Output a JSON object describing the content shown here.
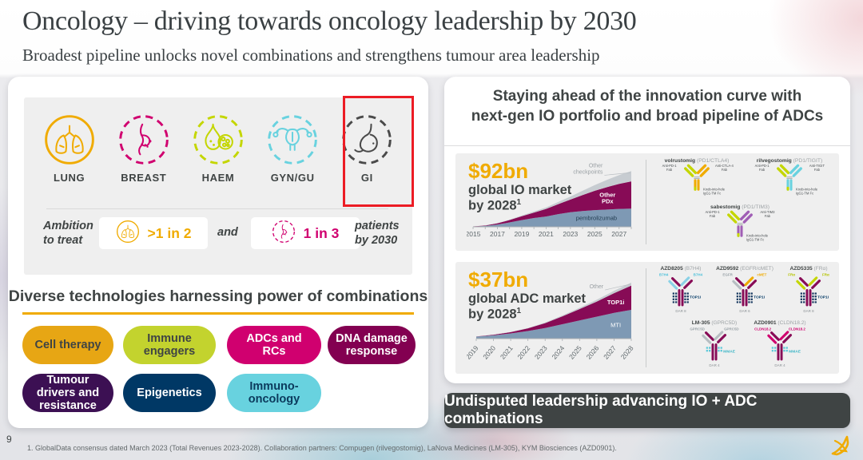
{
  "slide": {
    "title": "Oncology – driving towards oncology leadership by 2030",
    "subtitle": "Broadest pipeline unlocks novel combinations and strengthens tumour area leadership",
    "page_number": "9",
    "footnote": "1. GlobalData consensus dated March 2023 (Total Revenues 2023-2028). Collaboration partners: Compugen (rilvegostomig), LaNova Medicines (LM-305), KYM Biosciences (AZD0901)."
  },
  "left_panel": {
    "tumour_areas": [
      {
        "label": "LUNG",
        "color": "#F0AB00",
        "ring": "solid",
        "icon": "lungs"
      },
      {
        "label": "BREAST",
        "color": "#D0006F",
        "ring": "dashed",
        "icon": "breast"
      },
      {
        "label": "HAEM",
        "color": "#C4D600",
        "ring": "dashed",
        "icon": "blood-drop"
      },
      {
        "label": "GYN/GU",
        "color": "#68D2DF",
        "ring": "dashed",
        "icon": "uterus"
      },
      {
        "label": "GI",
        "color": "#4A4A4A",
        "ring": "dashed",
        "icon": "stomach",
        "highlighted": true
      }
    ],
    "highlight_color": "#EC1C24",
    "ambition": {
      "prefix": "Ambition\nto treat",
      "stat1": {
        "value": ">1 in 2",
        "color": "#F0AB00",
        "icon": "lungs",
        "ring": "solid"
      },
      "conjunction": "and",
      "stat2": {
        "value": "1 in 3",
        "color": "#D0006F",
        "icon": "breast",
        "ring": "dashed"
      },
      "suffix": "patients\nby 2030"
    },
    "technologies": {
      "heading": "Diverse technologies harnessing power of combinations",
      "underline_color": "#F0AB00",
      "pills": [
        {
          "label": "Cell therapy",
          "bg": "#E7A614",
          "fg": "#3F4444"
        },
        {
          "label": "Immune engagers",
          "bg": "#C3D32E",
          "fg": "#3F4444"
        },
        {
          "label": "ADCs and RCs",
          "bg": "#D0006F",
          "fg": "#FFFFFF"
        },
        {
          "label": "DNA damage response",
          "bg": "#830051",
          "fg": "#FFFFFF"
        },
        {
          "label": "Tumour drivers and resistance",
          "bg": "#3C1053",
          "fg": "#FFFFFF"
        },
        {
          "label": "Epigenetics",
          "bg": "#003865",
          "fg": "#FFFFFF"
        },
        {
          "label": "Immuno-oncology",
          "bg": "#68D2DF",
          "fg": "#0B3A5C"
        }
      ]
    }
  },
  "right_panel": {
    "heading_line1": "Staying ahead of the innovation curve with",
    "heading_line2": "next-gen IO portfolio and broad pipeline of ADCs",
    "io": {
      "value": "$92bn",
      "line1": "global IO market",
      "line2": "by 2028",
      "sup": "1"
    },
    "adc": {
      "value": "$37bn",
      "line1": "global ADC market",
      "line2": "by 2028",
      "sup": "1"
    },
    "io_antibodies": [
      {
        "name": "volrustomig",
        "target": "(PD1/CTLA4)",
        "left_fab": "Anti-PD-1\nFab",
        "right_fab": "Anti-CTLA-4\nFab",
        "fc": "Knob-into-hole\nIgG1-TM Fc",
        "left_color": "#C4D600",
        "right_color": "#F0AB00"
      },
      {
        "name": "rilvegostomig",
        "target": "(PD1/TIGIT)",
        "left_fab": "Anti-PD-1\nFab",
        "right_fab": "Anti-TIGIT\nFab",
        "fc": "Knob-into-hole\nIgG1-TM Fc",
        "left_color": "#C4D600",
        "right_color": "#68D2DF"
      },
      {
        "name": "sabestomig",
        "target": "(PD1/TIM3)",
        "left_fab": "Anti-PD-1\nFab",
        "right_fab": "Anti-TIM3\nFab",
        "fc": "Knob-into-hole\nIgG1-TM Fc",
        "left_color": "#C4D600",
        "right_color": "#A05EB5"
      }
    ],
    "adc_antibodies": [
      {
        "name": "AZD8205",
        "target": "(B7H4)",
        "tip_left": "B7H4",
        "tip_right": "B7H4",
        "tip_left_color": "#4FC1DA",
        "tip_right_color": "#4FC1DA",
        "arm_left_color": "#8AD1E6",
        "arm_right_color": "#8AD1E6",
        "payload": "TOP1i",
        "payload_color": "#003865",
        "dar": "DAR 8"
      },
      {
        "name": "AZD9592",
        "target": "(EGFR/cMET)",
        "tip_left": "EGFR",
        "tip_right": "cMET",
        "tip_left_color": "#9AA3A8",
        "tip_right_color": "#F0AB00",
        "arm_left_color": "#B7BEC2",
        "arm_right_color": "#F0AB00",
        "payload": "TOP1i",
        "payload_color": "#003865",
        "dar": "DAR 6"
      },
      {
        "name": "AZD5335",
        "target": "(FRα)",
        "tip_left": "FRα",
        "tip_right": "FRα",
        "tip_left_color": "#B5C400",
        "tip_right_color": "#B5C400",
        "arm_left_color": "#C4D600",
        "arm_right_color": "#C4D600",
        "payload": "TOP1i",
        "payload_color": "#003865",
        "dar": "DAR 8"
      },
      {
        "name": "LM-305",
        "target": "(GPRC5D)",
        "tip_left": "GPRC5D",
        "tip_right": "GPRC5D",
        "tip_left_color": "#9AA3A8",
        "tip_right_color": "#9AA3A8",
        "arm_left_color": "#B7BEC2",
        "arm_right_color": "#B7BEC2",
        "payload": "MMAE",
        "payload_color": "#3FB7C7",
        "dar": "DAR 4"
      },
      {
        "name": "AZD0901",
        "target": "(CLDN18.2)",
        "tip_left": "CLDN18.2",
        "tip_right": "CLDN18.2",
        "tip_left_color": "#D0006F",
        "tip_right_color": "#D0006F",
        "arm_left_color": "#D0006F",
        "arm_right_color": "#D0006F",
        "payload": "MMAE",
        "payload_color": "#3FB7C7",
        "dar": "DAR 4"
      }
    ],
    "banner": "Undisputed leadership advancing IO + ADC combinations"
  },
  "chart_data": [
    {
      "type": "area",
      "stacked": true,
      "title": "$92bn global IO market by 2028",
      "x": [
        2015,
        2016,
        2017,
        2018,
        2019,
        2020,
        2021,
        2022,
        2023,
        2024,
        2025,
        2026,
        2027,
        2028
      ],
      "tick_labels": [
        "2015",
        "2017",
        "2019",
        "2021",
        "2023",
        "2025",
        "2027"
      ],
      "tick_every": 2,
      "rotate_labels": false,
      "ylim": [
        0,
        95
      ],
      "series": [
        {
          "name": "pembrolizumab",
          "color": "#7E99B4",
          "label": "pembrolizumab",
          "label_color": "#233E52",
          "label_x": 0.78,
          "values": [
            0.5,
            1.5,
            3.8,
            7.2,
            11,
            14.5,
            17,
            21,
            24,
            26,
            27.5,
            28.5,
            29.5,
            30
          ]
        },
        {
          "name": "Other PDx",
          "color": "#870B56",
          "label": "Other\nPDx",
          "label_color": "#FFFFFF",
          "label_x": 0.85,
          "values": [
            0.2,
            0.7,
            2,
            4,
            6.5,
            9,
            12.5,
            16.5,
            21,
            26.5,
            32,
            37,
            41.5,
            45
          ]
        },
        {
          "name": "Other checkpoints",
          "color": "#C7CCD1",
          "label": "Other\ncheckpoints",
          "label_color": "#9AA0A4",
          "label_outside": true,
          "values": [
            0,
            0.1,
            0.3,
            0.6,
            1.1,
            1.7,
            2.5,
            3.5,
            5,
            7,
            9.5,
            12,
            14.5,
            17
          ]
        }
      ]
    },
    {
      "type": "area",
      "stacked": true,
      "title": "$37bn global ADC market by 2028",
      "x": [
        2019,
        2020,
        2021,
        2022,
        2023,
        2024,
        2025,
        2026,
        2027,
        2028
      ],
      "tick_labels": [
        "2019",
        "2020",
        "2021",
        "2022",
        "2023",
        "2024",
        "2025",
        "2026",
        "2027",
        "2028"
      ],
      "tick_every": 1,
      "rotate_labels": true,
      "ylim": [
        0,
        38
      ],
      "series": [
        {
          "name": "MTI",
          "color": "#7E99B4",
          "label": "MTI",
          "label_color": "#FFFFFF",
          "label_x": 0.9,
          "values": [
            1.3,
            2.2,
            3.4,
            5,
            7,
            9.5,
            12,
            14.5,
            17,
            19
          ]
        },
        {
          "name": "TOP1i",
          "color": "#870B56",
          "label": "TOP1i",
          "label_color": "#FFFFFF",
          "label_x": 0.9,
          "values": [
            0.1,
            0.4,
            0.9,
            1.8,
            3.2,
            5.2,
            7.5,
            10,
            13,
            16
          ]
        },
        {
          "name": "Other",
          "color": "#C7CCD1",
          "label": "Other",
          "label_color": "#9AA0A4",
          "label_outside": true,
          "values": [
            0,
            0.1,
            0.1,
            0.2,
            0.4,
            0.6,
            0.9,
            1.2,
            1.6,
            2
          ]
        }
      ]
    }
  ]
}
